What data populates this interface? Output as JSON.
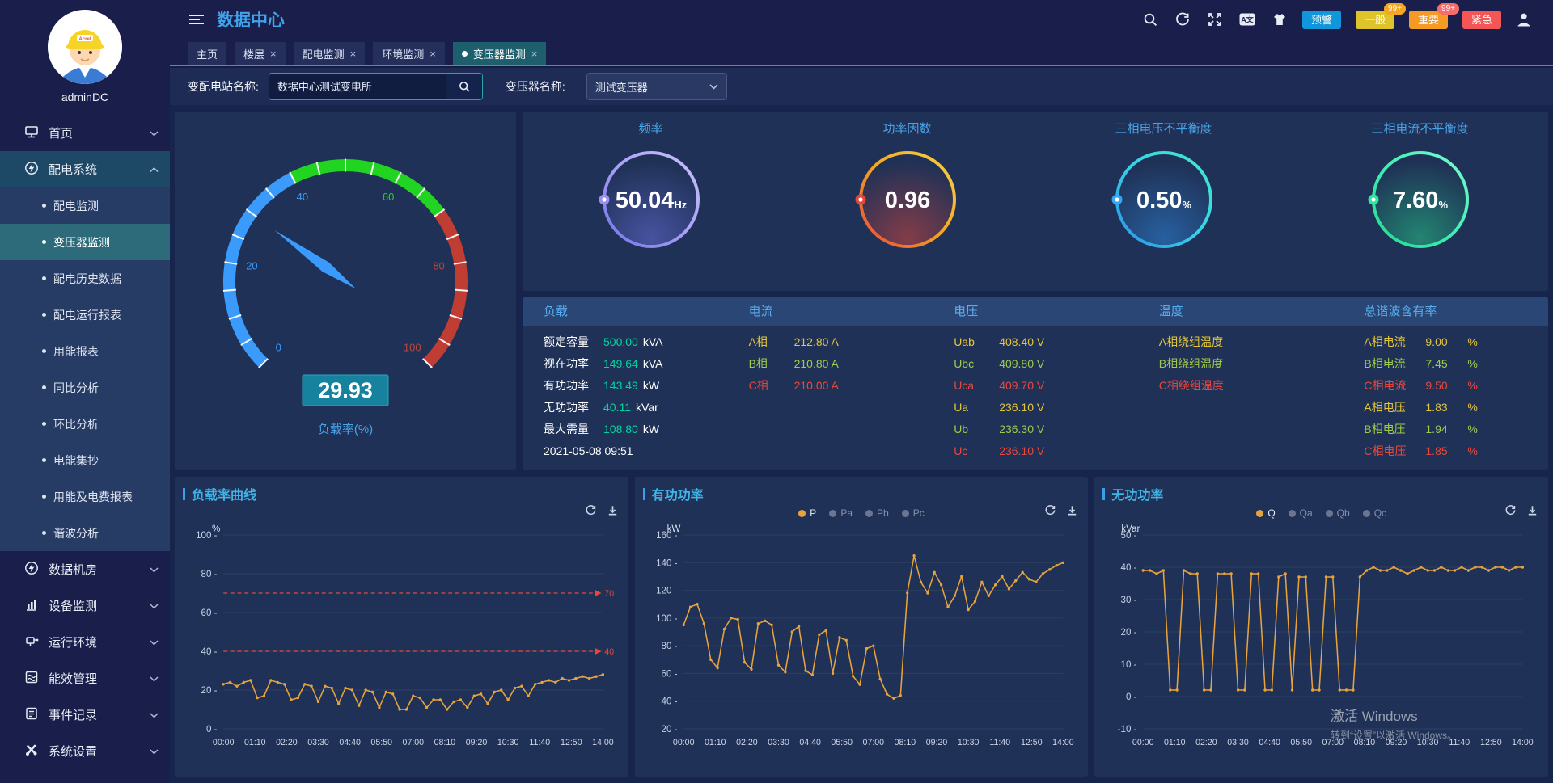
{
  "header": {
    "title": "数据中心",
    "language_icon_label": "A文",
    "alarms": [
      {
        "label": "预警",
        "bg": "#1296db",
        "badge": "",
        "badge_bg": ""
      },
      {
        "label": "一般",
        "bg": "#dfc32a",
        "badge": "99+",
        "badge_bg": "#f5a623"
      },
      {
        "label": "重要",
        "bg": "#f59a23",
        "badge": "99+",
        "badge_bg": "#f56c6c"
      },
      {
        "label": "紧急",
        "bg": "#f25656",
        "badge": "",
        "badge_bg": ""
      }
    ]
  },
  "tabs": {
    "close_glyph": "×",
    "items": [
      {
        "label": "主页",
        "closable": false,
        "active": false
      },
      {
        "label": "楼层",
        "closable": true,
        "active": false
      },
      {
        "label": "配电监测",
        "closable": true,
        "active": false
      },
      {
        "label": "环境监测",
        "closable": true,
        "active": false
      },
      {
        "label": "变压器监测",
        "closable": true,
        "active": true
      }
    ]
  },
  "filter": {
    "station_label": "变配电站名称:",
    "station_value": "数据中心测试变电所",
    "transformer_label": "变压器名称:",
    "transformer_value": "测试变压器"
  },
  "sidebar": {
    "username": "adminDC",
    "menu": [
      {
        "label": "首页",
        "icon": "monitor",
        "expanded": false,
        "children": []
      },
      {
        "label": "配电系统",
        "icon": "power",
        "expanded": true,
        "children": [
          {
            "label": "配电监测",
            "active": false
          },
          {
            "label": "变压器监测",
            "active": true
          },
          {
            "label": "配电历史数据",
            "active": false
          },
          {
            "label": "配电运行报表",
            "active": false
          },
          {
            "label": "用能报表",
            "active": false
          },
          {
            "label": "同比分析",
            "active": false
          },
          {
            "label": "环比分析",
            "active": false
          },
          {
            "label": "电能集抄",
            "active": false
          },
          {
            "label": "用能及电费报表",
            "active": false
          },
          {
            "label": "谐波分析",
            "active": false
          }
        ]
      },
      {
        "label": "数据机房",
        "icon": "power",
        "expanded": false,
        "children": []
      },
      {
        "label": "设备监测",
        "icon": "barchart",
        "expanded": false,
        "children": []
      },
      {
        "label": "运行环境",
        "icon": "device",
        "expanded": false,
        "children": []
      },
      {
        "label": "能效管理",
        "icon": "energy",
        "expanded": false,
        "children": []
      },
      {
        "label": "事件记录",
        "icon": "event",
        "expanded": false,
        "children": []
      },
      {
        "label": "系统设置",
        "icon": "settings",
        "expanded": false,
        "children": []
      }
    ]
  },
  "gauge": {
    "value": "29.93",
    "label": "负载率(%)",
    "min": 0,
    "max": 100,
    "tick_labels": [
      0,
      20,
      40,
      60,
      80,
      100
    ],
    "zones": [
      {
        "from": 0,
        "to": 40,
        "color": "#3a9bfc"
      },
      {
        "from": 40,
        "to": 70,
        "color": "#22d422"
      },
      {
        "from": 70,
        "to": 100,
        "color": "#bf3d32"
      }
    ],
    "value_box_color": "#16829e"
  },
  "ring_gauges": [
    {
      "title": "频率",
      "value": "50.04",
      "unit": "Hz",
      "grad": [
        "#6f74e8",
        "#a89ff5",
        "#c7c2fa"
      ],
      "dot": "#9a90f0"
    },
    {
      "title": "功率因数",
      "value": "0.96",
      "unit": "",
      "grad": [
        "#e8473b",
        "#f5a623",
        "#f7d24a"
      ],
      "dot": "#e8473b"
    },
    {
      "title": "三相电压不平衡度",
      "value": "0.50",
      "unit": "%",
      "grad": [
        "#2f8fe8",
        "#35d3e8",
        "#45e8c8"
      ],
      "dot": "#35a7f0"
    },
    {
      "title": "三相电流不平衡度",
      "value": "7.60",
      "unit": "%",
      "grad": [
        "#25d98c",
        "#3ef0b4",
        "#7ef8d0"
      ],
      "dot": "#2ee6a0"
    }
  ],
  "table": {
    "headers": [
      "负载",
      "电流",
      "电压",
      "温度",
      "总谐波含有率"
    ],
    "load_rows": [
      {
        "label": "额定容量",
        "value": "500.00",
        "unit": "kVA"
      },
      {
        "label": "视在功率",
        "value": "149.64",
        "unit": "kVA"
      },
      {
        "label": "有功功率",
        "value": "143.49",
        "unit": "kW"
      },
      {
        "label": "无功功率",
        "value": "40.11",
        "unit": "kVar"
      },
      {
        "label": "最大需量",
        "value": "108.80",
        "unit": "kW"
      }
    ],
    "timestamp": "2021-05-08 09:51",
    "current_rows": [
      {
        "label": "A相",
        "value": "212.80 A",
        "tone": "a"
      },
      {
        "label": "B相",
        "value": "210.80 A",
        "tone": "b"
      },
      {
        "label": "C相",
        "value": "210.00 A",
        "tone": "c"
      }
    ],
    "voltage_rows": [
      {
        "label": "Uab",
        "value": "408.40 V",
        "tone": "a"
      },
      {
        "label": "Ubc",
        "value": "409.80 V",
        "tone": "b"
      },
      {
        "label": "Uca",
        "value": "409.70 V",
        "tone": "c"
      },
      {
        "label": "Ua",
        "value": "236.10 V",
        "tone": "a"
      },
      {
        "label": "Ub",
        "value": "236.30 V",
        "tone": "b"
      },
      {
        "label": "Uc",
        "value": "236.10 V",
        "tone": "c"
      }
    ],
    "temp_rows": [
      {
        "label": "A相绕组温度",
        "tone": "a"
      },
      {
        "label": "B相绕组温度",
        "tone": "b"
      },
      {
        "label": "C相绕组温度",
        "tone": "c"
      }
    ],
    "thd_rows": [
      {
        "label": "A相电流",
        "value": "9.00",
        "unit": "%",
        "tone": "a"
      },
      {
        "label": "B相电流",
        "value": "7.45",
        "unit": "%",
        "tone": "b"
      },
      {
        "label": "C相电流",
        "value": "9.50",
        "unit": "%",
        "tone": "c"
      },
      {
        "label": "A相电压",
        "value": "1.83",
        "unit": "%",
        "tone": "a"
      },
      {
        "label": "B相电压",
        "value": "1.94",
        "unit": "%",
        "tone": "b"
      },
      {
        "label": "C相电压",
        "value": "1.85",
        "unit": "%",
        "tone": "c"
      }
    ]
  },
  "chart_data": [
    {
      "type": "line",
      "title": "负载率曲线",
      "unit": "%",
      "ylim": [
        0,
        100
      ],
      "ystep": 20,
      "x_ticks": [
        "00:00",
        "01:10",
        "02:20",
        "03:30",
        "04:40",
        "05:50",
        "07:00",
        "08:10",
        "09:20",
        "10:30",
        "11:40",
        "12:50",
        "14:00"
      ],
      "thresholds": [
        {
          "value": 70,
          "label": "70"
        },
        {
          "value": 40,
          "label": "40"
        }
      ],
      "legend": [],
      "series": [
        {
          "name": "负载率",
          "color": "#e8a33d",
          "values": [
            23,
            24,
            22,
            24,
            25,
            16,
            17,
            25,
            24,
            23,
            15,
            16,
            23,
            22,
            14,
            22,
            21,
            13,
            21,
            20,
            12,
            20,
            19,
            11,
            19,
            18,
            10,
            10,
            17,
            16,
            11,
            15,
            15,
            10,
            14,
            15,
            11,
            17,
            18,
            13,
            19,
            20,
            15,
            21,
            22,
            17,
            23,
            24,
            25,
            24,
            26,
            25,
            26,
            27,
            26,
            27,
            28
          ]
        }
      ]
    },
    {
      "type": "line",
      "title": "有功功率",
      "unit": "kW",
      "ylim": [
        20,
        160
      ],
      "ystep": 20,
      "x_ticks": [
        "00:00",
        "01:10",
        "02:20",
        "03:30",
        "04:40",
        "05:50",
        "07:00",
        "08:10",
        "09:20",
        "10:30",
        "11:40",
        "12:50",
        "14:00"
      ],
      "thresholds": [],
      "legend": [
        {
          "name": "P",
          "active": true
        },
        {
          "name": "Pa",
          "active": false
        },
        {
          "name": "Pb",
          "active": false
        },
        {
          "name": "Pc",
          "active": false
        }
      ],
      "series": [
        {
          "name": "P",
          "color": "#e8a33d",
          "values": [
            95,
            108,
            110,
            96,
            70,
            64,
            92,
            100,
            99,
            68,
            63,
            96,
            98,
            95,
            66,
            61,
            90,
            94,
            62,
            59,
            88,
            91,
            60,
            86,
            84,
            58,
            52,
            78,
            80,
            56,
            45,
            42,
            44,
            118,
            145,
            126,
            118,
            133,
            124,
            108,
            116,
            130,
            106,
            112,
            126,
            116,
            124,
            130,
            121,
            127,
            133,
            128,
            126,
            132,
            135,
            138,
            140
          ]
        }
      ]
    },
    {
      "type": "line",
      "title": "无功功率",
      "unit": "kVar",
      "ylim": [
        -10,
        50
      ],
      "ystep": 10,
      "x_ticks": [
        "00:00",
        "01:10",
        "02:20",
        "03:30",
        "04:40",
        "05:50",
        "07:00",
        "08:10",
        "09:20",
        "10:30",
        "11:40",
        "12:50",
        "14:00"
      ],
      "thresholds": [],
      "legend": [
        {
          "name": "Q",
          "active": true
        },
        {
          "name": "Qa",
          "active": false
        },
        {
          "name": "Qb",
          "active": false
        },
        {
          "name": "Qc",
          "active": false
        }
      ],
      "series": [
        {
          "name": "Q",
          "color": "#e8a33d",
          "values": [
            39,
            39,
            38,
            39,
            2,
            2,
            39,
            38,
            38,
            2,
            2,
            38,
            38,
            38,
            2,
            2,
            38,
            38,
            2,
            2,
            37,
            38,
            2,
            37,
            37,
            2,
            2,
            37,
            37,
            2,
            2,
            2,
            37,
            39,
            40,
            39,
            39,
            40,
            39,
            38,
            39,
            40,
            39,
            39,
            40,
            39,
            39,
            40,
            39,
            40,
            40,
            39,
            40,
            40,
            39,
            40,
            40
          ]
        }
      ]
    }
  ],
  "watermark": {
    "line1": "激活 Windows",
    "line2": "转到“设置”以激活 Windows。"
  }
}
